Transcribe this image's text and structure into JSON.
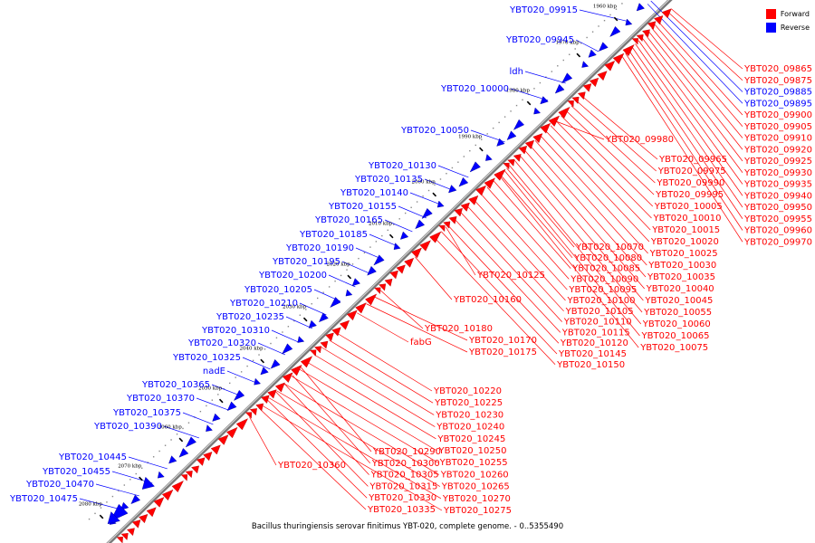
{
  "legend": {
    "forward_label": "Forward",
    "reverse_label": "Reverse",
    "forward_color": "#ff0000",
    "reverse_color": "#0000ff"
  },
  "caption": "Bacillus thuringiensis serovar finitimus YBT-020, complete genome. - 0..5355490",
  "ticks": [
    "1960 kbp",
    "1970 kbp",
    "1980 kbp",
    "1990 kbp",
    "2000 kbp",
    "2010 kbp",
    "2020 kbp",
    "2030 kbp",
    "2040 kbp",
    "2050 kbp",
    "2060 kbp",
    "2070 kbp",
    "2080 kbp"
  ],
  "reverse_genes": [
    "YBT020_09915",
    "YBT020_09945",
    "ldh",
    "YBT020_10000",
    "YBT020_10050",
    "YBT020_10130",
    "YBT020_10135",
    "YBT020_10140",
    "YBT020_10155",
    "YBT020_10165",
    "YBT020_10185",
    "YBT020_10190",
    "YBT020_10195",
    "YBT020_10200",
    "YBT020_10205",
    "YBT020_10210",
    "YBT020_10235",
    "YBT020_10310",
    "YBT020_10320",
    "YBT020_10325",
    "nadE",
    "YBT020_10365",
    "YBT020_10370",
    "YBT020_10375",
    "YBT020_10390",
    "YBT020_10445",
    "YBT020_10455",
    "YBT020_10470",
    "YBT020_10475"
  ],
  "right_column_genes": [
    "YBT020_09865",
    "YBT020_09875",
    "YBT020_09885",
    "YBT020_09895",
    "YBT020_09900",
    "YBT020_09905",
    "YBT020_09910",
    "YBT020_09920",
    "YBT020_09925",
    "YBT020_09930",
    "YBT020_09935",
    "YBT020_09940",
    "YBT020_09950",
    "YBT020_09955",
    "YBT020_09960",
    "YBT020_09970"
  ],
  "right_column_colors": [
    "red",
    "red",
    "blue",
    "blue",
    "red",
    "red",
    "red",
    "red",
    "red",
    "red",
    "red",
    "red",
    "red",
    "red",
    "red",
    "red"
  ],
  "forward_col_a": [
    "YBT020_09965",
    "YBT020_09975",
    "YBT020_09990",
    "YBT020_09995",
    "YBT020_10005",
    "YBT020_10010",
    "YBT020_10015",
    "YBT020_10020",
    "YBT020_10025",
    "YBT020_10030",
    "YBT020_10035",
    "YBT020_10040",
    "YBT020_10045",
    "YBT020_10055",
    "YBT020_10060",
    "YBT020_10065",
    "YBT020_10075"
  ],
  "forward_col_b": [
    "YBT020_10070",
    "YBT020_10080",
    "YBT020_10085",
    "YBT020_10090",
    "YBT020_10095",
    "YBT020_10100",
    "YBT020_10105",
    "YBT020_10110",
    "YBT020_10115",
    "YBT020_10120",
    "YBT020_10145",
    "YBT020_10150"
  ],
  "forward_singles": [
    "YBT020_09980",
    "YBT020_10125",
    "YBT020_10160",
    "YBT020_10180",
    "YBT020_10170",
    "YBT020_10175",
    "fabG",
    "YBT020_10360"
  ],
  "forward_col_c": [
    "YBT020_10220",
    "YBT020_10225",
    "YBT020_10230",
    "YBT020_10240",
    "YBT020_10245",
    "YBT020_10250",
    "YBT020_10255",
    "YBT020_10260",
    "YBT020_10265",
    "YBT020_10270",
    "YBT020_10275"
  ],
  "forward_col_d": [
    "YBT020_10290",
    "YBT020_10300",
    "YBT020_10305",
    "YBT020_10315",
    "YBT020_10330",
    "YBT020_10335"
  ]
}
